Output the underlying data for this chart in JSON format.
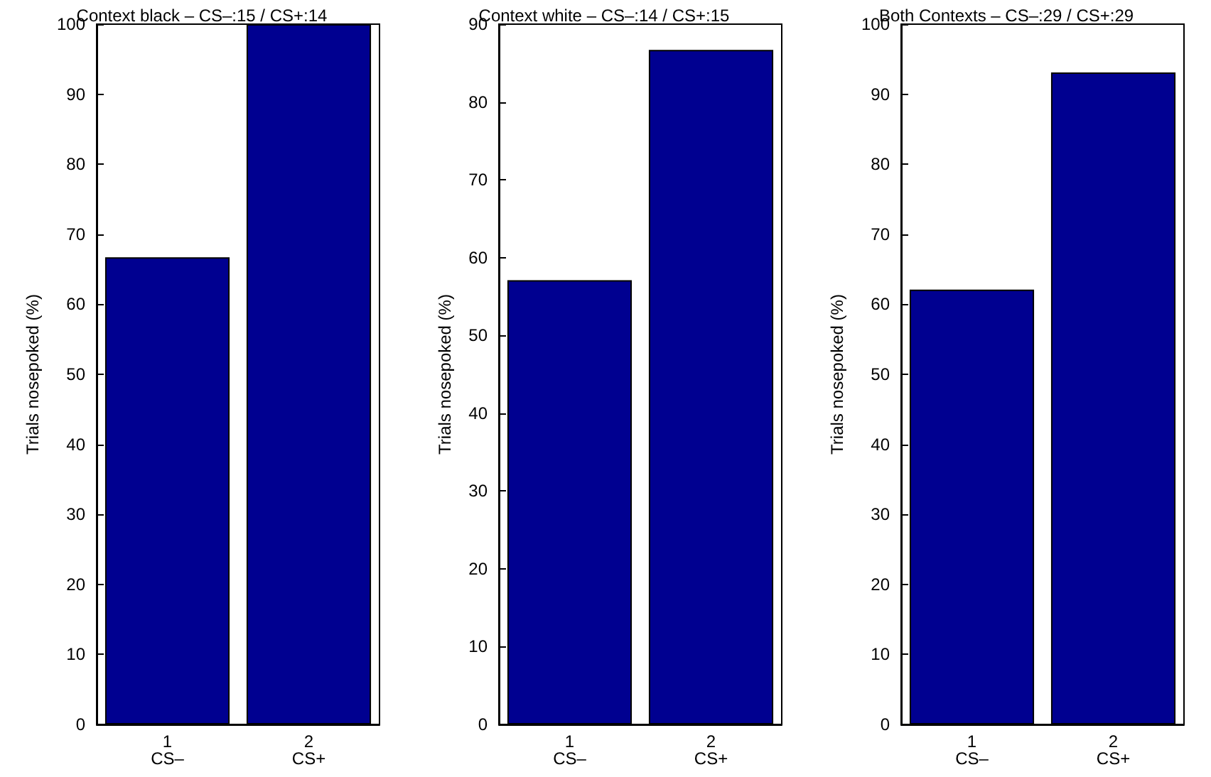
{
  "chart_data": [
    {
      "type": "bar",
      "title": "Context black – CS–:15 / CS+:14",
      "ylabel": "Trials nosepoked (%)",
      "categories": [
        "1\nCS–",
        "2\nCS+"
      ],
      "values": [
        66.7,
        100
      ],
      "color": "#000090",
      "ylim": [
        0,
        100
      ],
      "yticks": [
        0,
        10,
        20,
        30,
        40,
        50,
        60,
        70,
        80,
        90,
        100
      ],
      "grid": false
    },
    {
      "type": "bar",
      "title": "Context white – CS–:14 / CS+:15",
      "ylabel": "Trials nosepoked (%)",
      "categories": [
        "1\nCS–",
        "2\nCS+"
      ],
      "values": [
        57.1,
        86.7
      ],
      "color": "#000090",
      "ylim": [
        0,
        90
      ],
      "yticks": [
        0,
        10,
        20,
        30,
        40,
        50,
        60,
        70,
        80,
        90
      ],
      "grid": false
    },
    {
      "type": "bar",
      "title": "Both Contexts – CS–:29 / CS+:29",
      "ylabel": "Trials nosepoked (%)",
      "categories": [
        "1\nCS–",
        "2\nCS+"
      ],
      "values": [
        62.1,
        93.1
      ],
      "color": "#000090",
      "ylim": [
        0,
        100
      ],
      "yticks": [
        0,
        10,
        20,
        30,
        40,
        50,
        60,
        70,
        80,
        90,
        100
      ],
      "grid": false
    }
  ]
}
